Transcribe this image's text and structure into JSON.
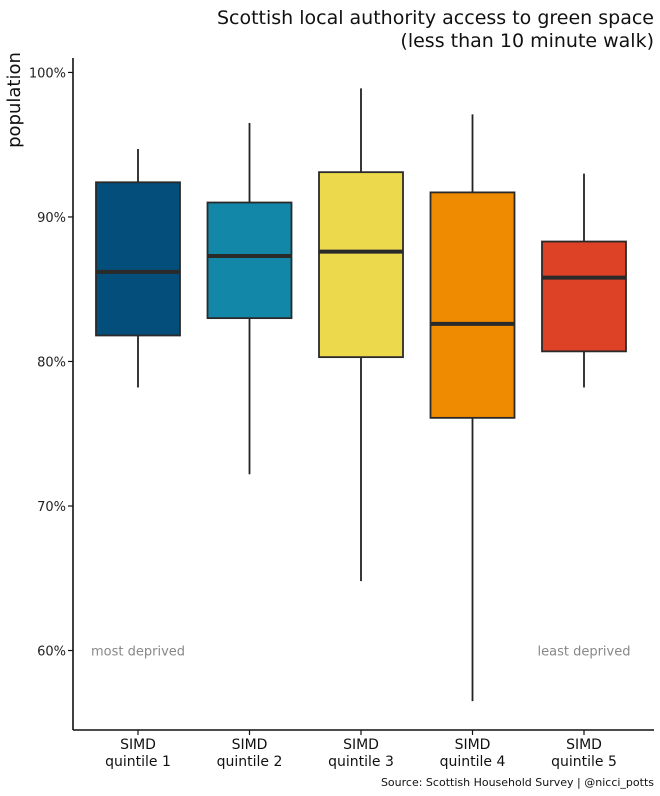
{
  "chart_data": {
    "type": "boxplot",
    "title_lines": [
      "Scottish local authority access to green space",
      "(less than 10 minute walk)"
    ],
    "ylabel": "population",
    "ylim": [
      0.545,
      1.01
    ],
    "yticks": [
      0.6,
      0.7,
      0.8,
      0.9,
      1.0
    ],
    "ytick_labels": [
      "60%",
      "70%",
      "80%",
      "90%",
      "100%"
    ],
    "grid": false,
    "categories": [
      {
        "label": [
          "SIMD",
          "quintile 1"
        ],
        "color": "#034e7b",
        "whisker_low": 0.782,
        "q1": 0.818,
        "median": 0.862,
        "q3": 0.924,
        "whisker_high": 0.947
      },
      {
        "label": [
          "SIMD",
          "quintile 2"
        ],
        "color": "#1287a8",
        "whisker_low": 0.722,
        "q1": 0.83,
        "median": 0.873,
        "q3": 0.91,
        "whisker_high": 0.965
      },
      {
        "label": [
          "SIMD",
          "quintile 3"
        ],
        "color": "#ecd94c",
        "whisker_low": 0.648,
        "q1": 0.803,
        "median": 0.876,
        "q3": 0.931,
        "whisker_high": 0.989
      },
      {
        "label": [
          "SIMD",
          "quintile 4"
        ],
        "color": "#ef8b00",
        "whisker_low": 0.565,
        "q1": 0.761,
        "median": 0.826,
        "q3": 0.917,
        "whisker_high": 0.971
      },
      {
        "label": [
          "SIMD",
          "quintile 5"
        ],
        "color": "#dd4126",
        "whisker_low": 0.782,
        "q1": 0.807,
        "median": 0.858,
        "q3": 0.883,
        "whisker_high": 0.93
      }
    ],
    "annotations": [
      {
        "text": "most deprived",
        "category": 0,
        "y": 0.6
      },
      {
        "text": "least deprived",
        "category": 4,
        "y": 0.6
      }
    ],
    "caption": "Source: Scottish Household Survey | @nicci_potts"
  }
}
